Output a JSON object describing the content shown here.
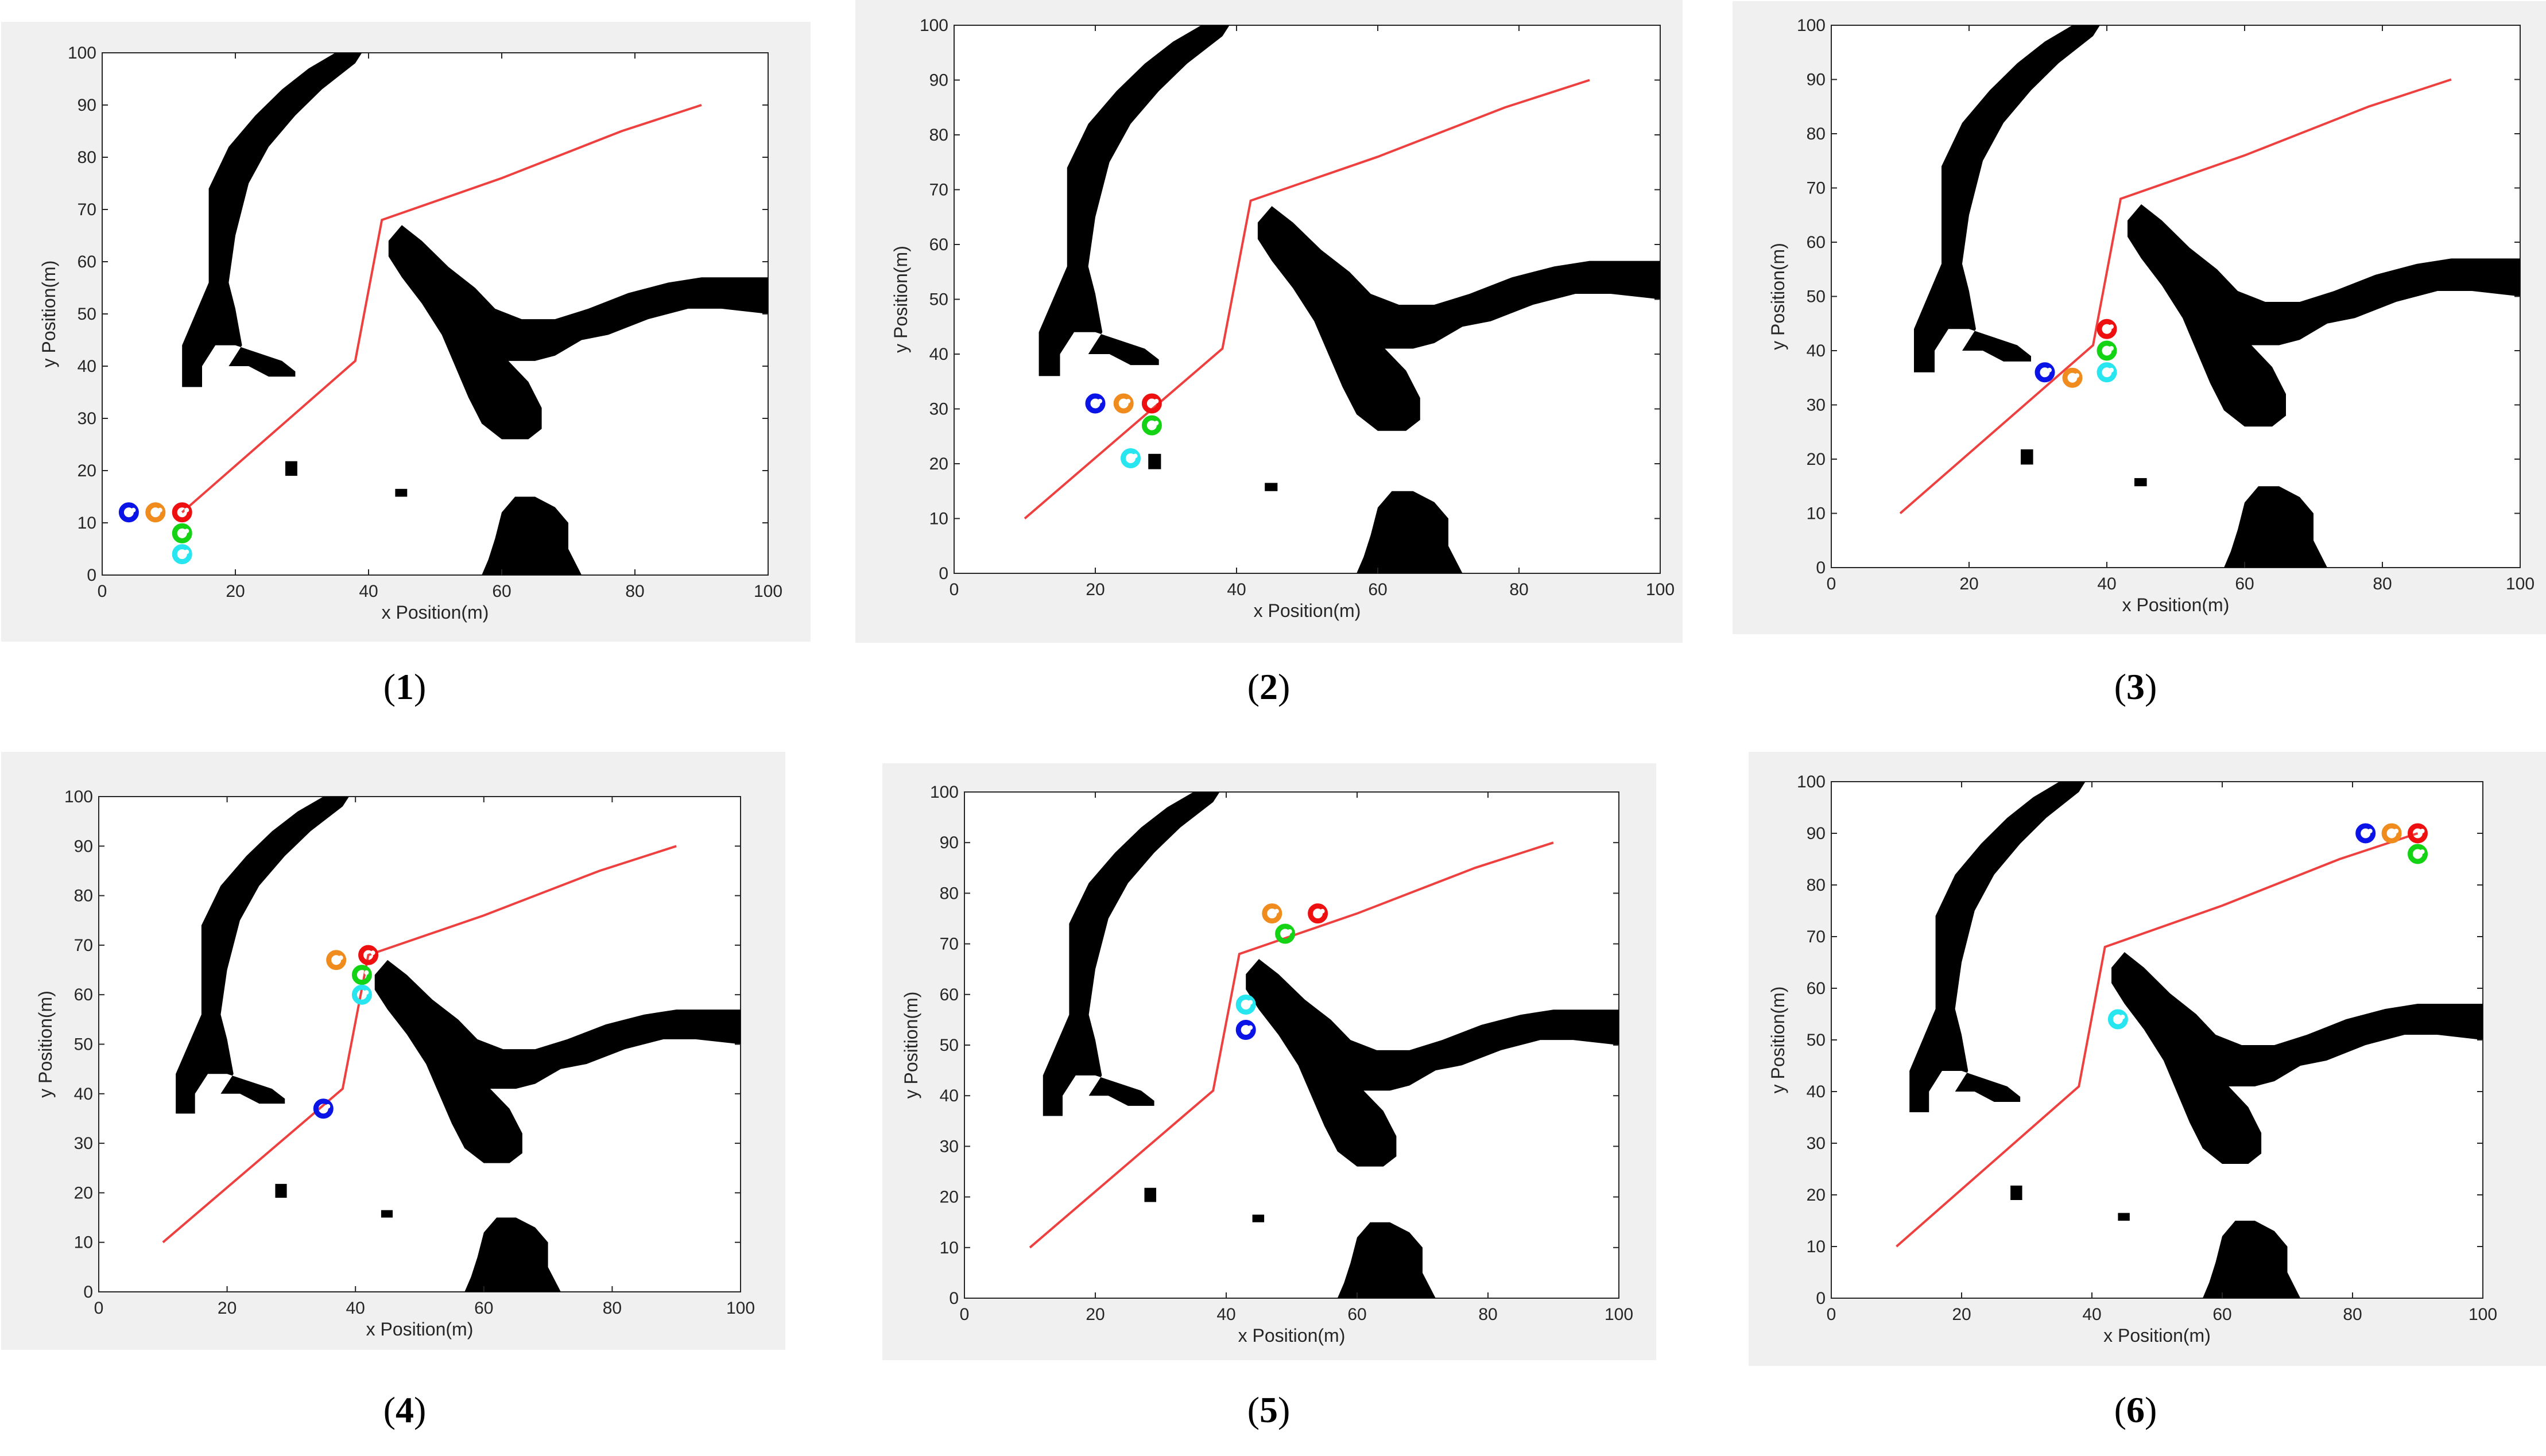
{
  "figure": {
    "captions": [
      {
        "open": "(",
        "num": "1",
        "close": ")"
      },
      {
        "open": "(",
        "num": "2",
        "close": ")"
      },
      {
        "open": "(",
        "num": "3",
        "close": ")"
      },
      {
        "open": "(",
        "num": "4",
        "close": ")"
      },
      {
        "open": "(",
        "num": "5",
        "close": ")"
      },
      {
        "open": "(",
        "num": "6",
        "close": ")"
      }
    ]
  },
  "colors": {
    "path": "#ef4040",
    "obstacle": "#000000",
    "agents": {
      "blue": "#0a14e6",
      "orange": "#f08c1e",
      "red": "#ee1010",
      "green": "#14d214",
      "cyan": "#28e6f0"
    }
  },
  "chart_data": [
    {
      "type": "line",
      "xlabel": "x Position(m)",
      "ylabel": "y Position(m)",
      "xlim": [
        0,
        100
      ],
      "ylim": [
        0,
        100
      ],
      "xticks": [
        "0",
        "20",
        "40",
        "60",
        "80",
        "100"
      ],
      "yticks": [
        "0",
        "10",
        "20",
        "30",
        "40",
        "50",
        "60",
        "70",
        "80",
        "90",
        "100"
      ],
      "path": {
        "x": [
          12,
          38,
          42,
          60,
          78,
          90
        ],
        "y": [
          12,
          41,
          68,
          76,
          85,
          90
        ]
      },
      "agents": [
        {
          "color": "blue",
          "x": 4,
          "y": 12
        },
        {
          "color": "orange",
          "x": 8,
          "y": 12
        },
        {
          "color": "red",
          "x": 12,
          "y": 12
        },
        {
          "color": "green",
          "x": 12,
          "y": 8
        },
        {
          "color": "cyan",
          "x": 12,
          "y": 4
        }
      ]
    },
    {
      "type": "line",
      "xlabel": "x Position(m)",
      "ylabel": "y Position(m)",
      "xlim": [
        0,
        100
      ],
      "ylim": [
        0,
        100
      ],
      "xticks": [
        "0",
        "20",
        "40",
        "60",
        "80",
        "100"
      ],
      "yticks": [
        "0",
        "10",
        "20",
        "30",
        "40",
        "50",
        "60",
        "70",
        "80",
        "90",
        "100"
      ],
      "path": {
        "x": [
          10,
          38,
          42,
          60,
          78,
          90
        ],
        "y": [
          10,
          41,
          68,
          76,
          85,
          90
        ]
      },
      "agents": [
        {
          "color": "blue",
          "x": 20,
          "y": 31
        },
        {
          "color": "orange",
          "x": 24,
          "y": 31
        },
        {
          "color": "red",
          "x": 28,
          "y": 31
        },
        {
          "color": "green",
          "x": 28,
          "y": 27
        },
        {
          "color": "cyan",
          "x": 25,
          "y": 21
        }
      ]
    },
    {
      "type": "line",
      "xlabel": "x Position(m)",
      "ylabel": "y Position(m)",
      "xlim": [
        0,
        100
      ],
      "ylim": [
        0,
        100
      ],
      "xticks": [
        "0",
        "20",
        "40",
        "60",
        "80",
        "100"
      ],
      "yticks": [
        "0",
        "10",
        "20",
        "30",
        "40",
        "50",
        "60",
        "70",
        "80",
        "90",
        "100"
      ],
      "path": {
        "x": [
          10,
          38,
          42,
          60,
          78,
          90
        ],
        "y": [
          10,
          41,
          68,
          76,
          85,
          90
        ]
      },
      "agents": [
        {
          "color": "blue",
          "x": 31,
          "y": 36
        },
        {
          "color": "orange",
          "x": 35,
          "y": 35
        },
        {
          "color": "red",
          "x": 40,
          "y": 44
        },
        {
          "color": "green",
          "x": 40,
          "y": 40
        },
        {
          "color": "cyan",
          "x": 40,
          "y": 36
        }
      ]
    },
    {
      "type": "line",
      "xlabel": "x Position(m)",
      "ylabel": "y Position(m)",
      "xlim": [
        0,
        100
      ],
      "ylim": [
        0,
        100
      ],
      "xticks": [
        "0",
        "20",
        "40",
        "60",
        "80",
        "100"
      ],
      "yticks": [
        "0",
        "10",
        "20",
        "30",
        "40",
        "50",
        "60",
        "70",
        "80",
        "90",
        "100"
      ],
      "path": {
        "x": [
          10,
          38,
          42,
          60,
          78,
          90
        ],
        "y": [
          10,
          41,
          68,
          76,
          85,
          90
        ]
      },
      "agents": [
        {
          "color": "blue",
          "x": 35,
          "y": 37
        },
        {
          "color": "orange",
          "x": 37,
          "y": 67
        },
        {
          "color": "red",
          "x": 42,
          "y": 68
        },
        {
          "color": "green",
          "x": 41,
          "y": 64
        },
        {
          "color": "cyan",
          "x": 41,
          "y": 60
        }
      ]
    },
    {
      "type": "line",
      "xlabel": "x Position(m)",
      "ylabel": "y Position(m)",
      "xlim": [
        0,
        100
      ],
      "ylim": [
        0,
        100
      ],
      "xticks": [
        "0",
        "20",
        "40",
        "60",
        "80",
        "100"
      ],
      "yticks": [
        "0",
        "10",
        "20",
        "30",
        "40",
        "50",
        "60",
        "70",
        "80",
        "90",
        "100"
      ],
      "path": {
        "x": [
          10,
          38,
          42,
          60,
          78,
          90
        ],
        "y": [
          10,
          41,
          68,
          76,
          85,
          90
        ]
      },
      "agents": [
        {
          "color": "blue",
          "x": 43,
          "y": 53
        },
        {
          "color": "orange",
          "x": 47,
          "y": 76
        },
        {
          "color": "red",
          "x": 54,
          "y": 76
        },
        {
          "color": "green",
          "x": 49,
          "y": 72
        },
        {
          "color": "cyan",
          "x": 43,
          "y": 58
        }
      ]
    },
    {
      "type": "line",
      "xlabel": "x Position(m)",
      "ylabel": "y Position(m)",
      "xlim": [
        0,
        100
      ],
      "ylim": [
        0,
        100
      ],
      "xticks": [
        "0",
        "20",
        "40",
        "60",
        "80",
        "100"
      ],
      "yticks": [
        "0",
        "10",
        "20",
        "30",
        "40",
        "50",
        "60",
        "70",
        "80",
        "90",
        "100"
      ],
      "path": {
        "x": [
          10,
          38,
          42,
          60,
          78,
          90
        ],
        "y": [
          10,
          41,
          68,
          76,
          85,
          90
        ]
      },
      "agents": [
        {
          "color": "blue",
          "x": 82,
          "y": 90
        },
        {
          "color": "orange",
          "x": 86,
          "y": 90
        },
        {
          "color": "red",
          "x": 90,
          "y": 90
        },
        {
          "color": "green",
          "x": 90,
          "y": 86
        },
        {
          "color": "cyan",
          "x": 44,
          "y": 54
        }
      ]
    }
  ]
}
